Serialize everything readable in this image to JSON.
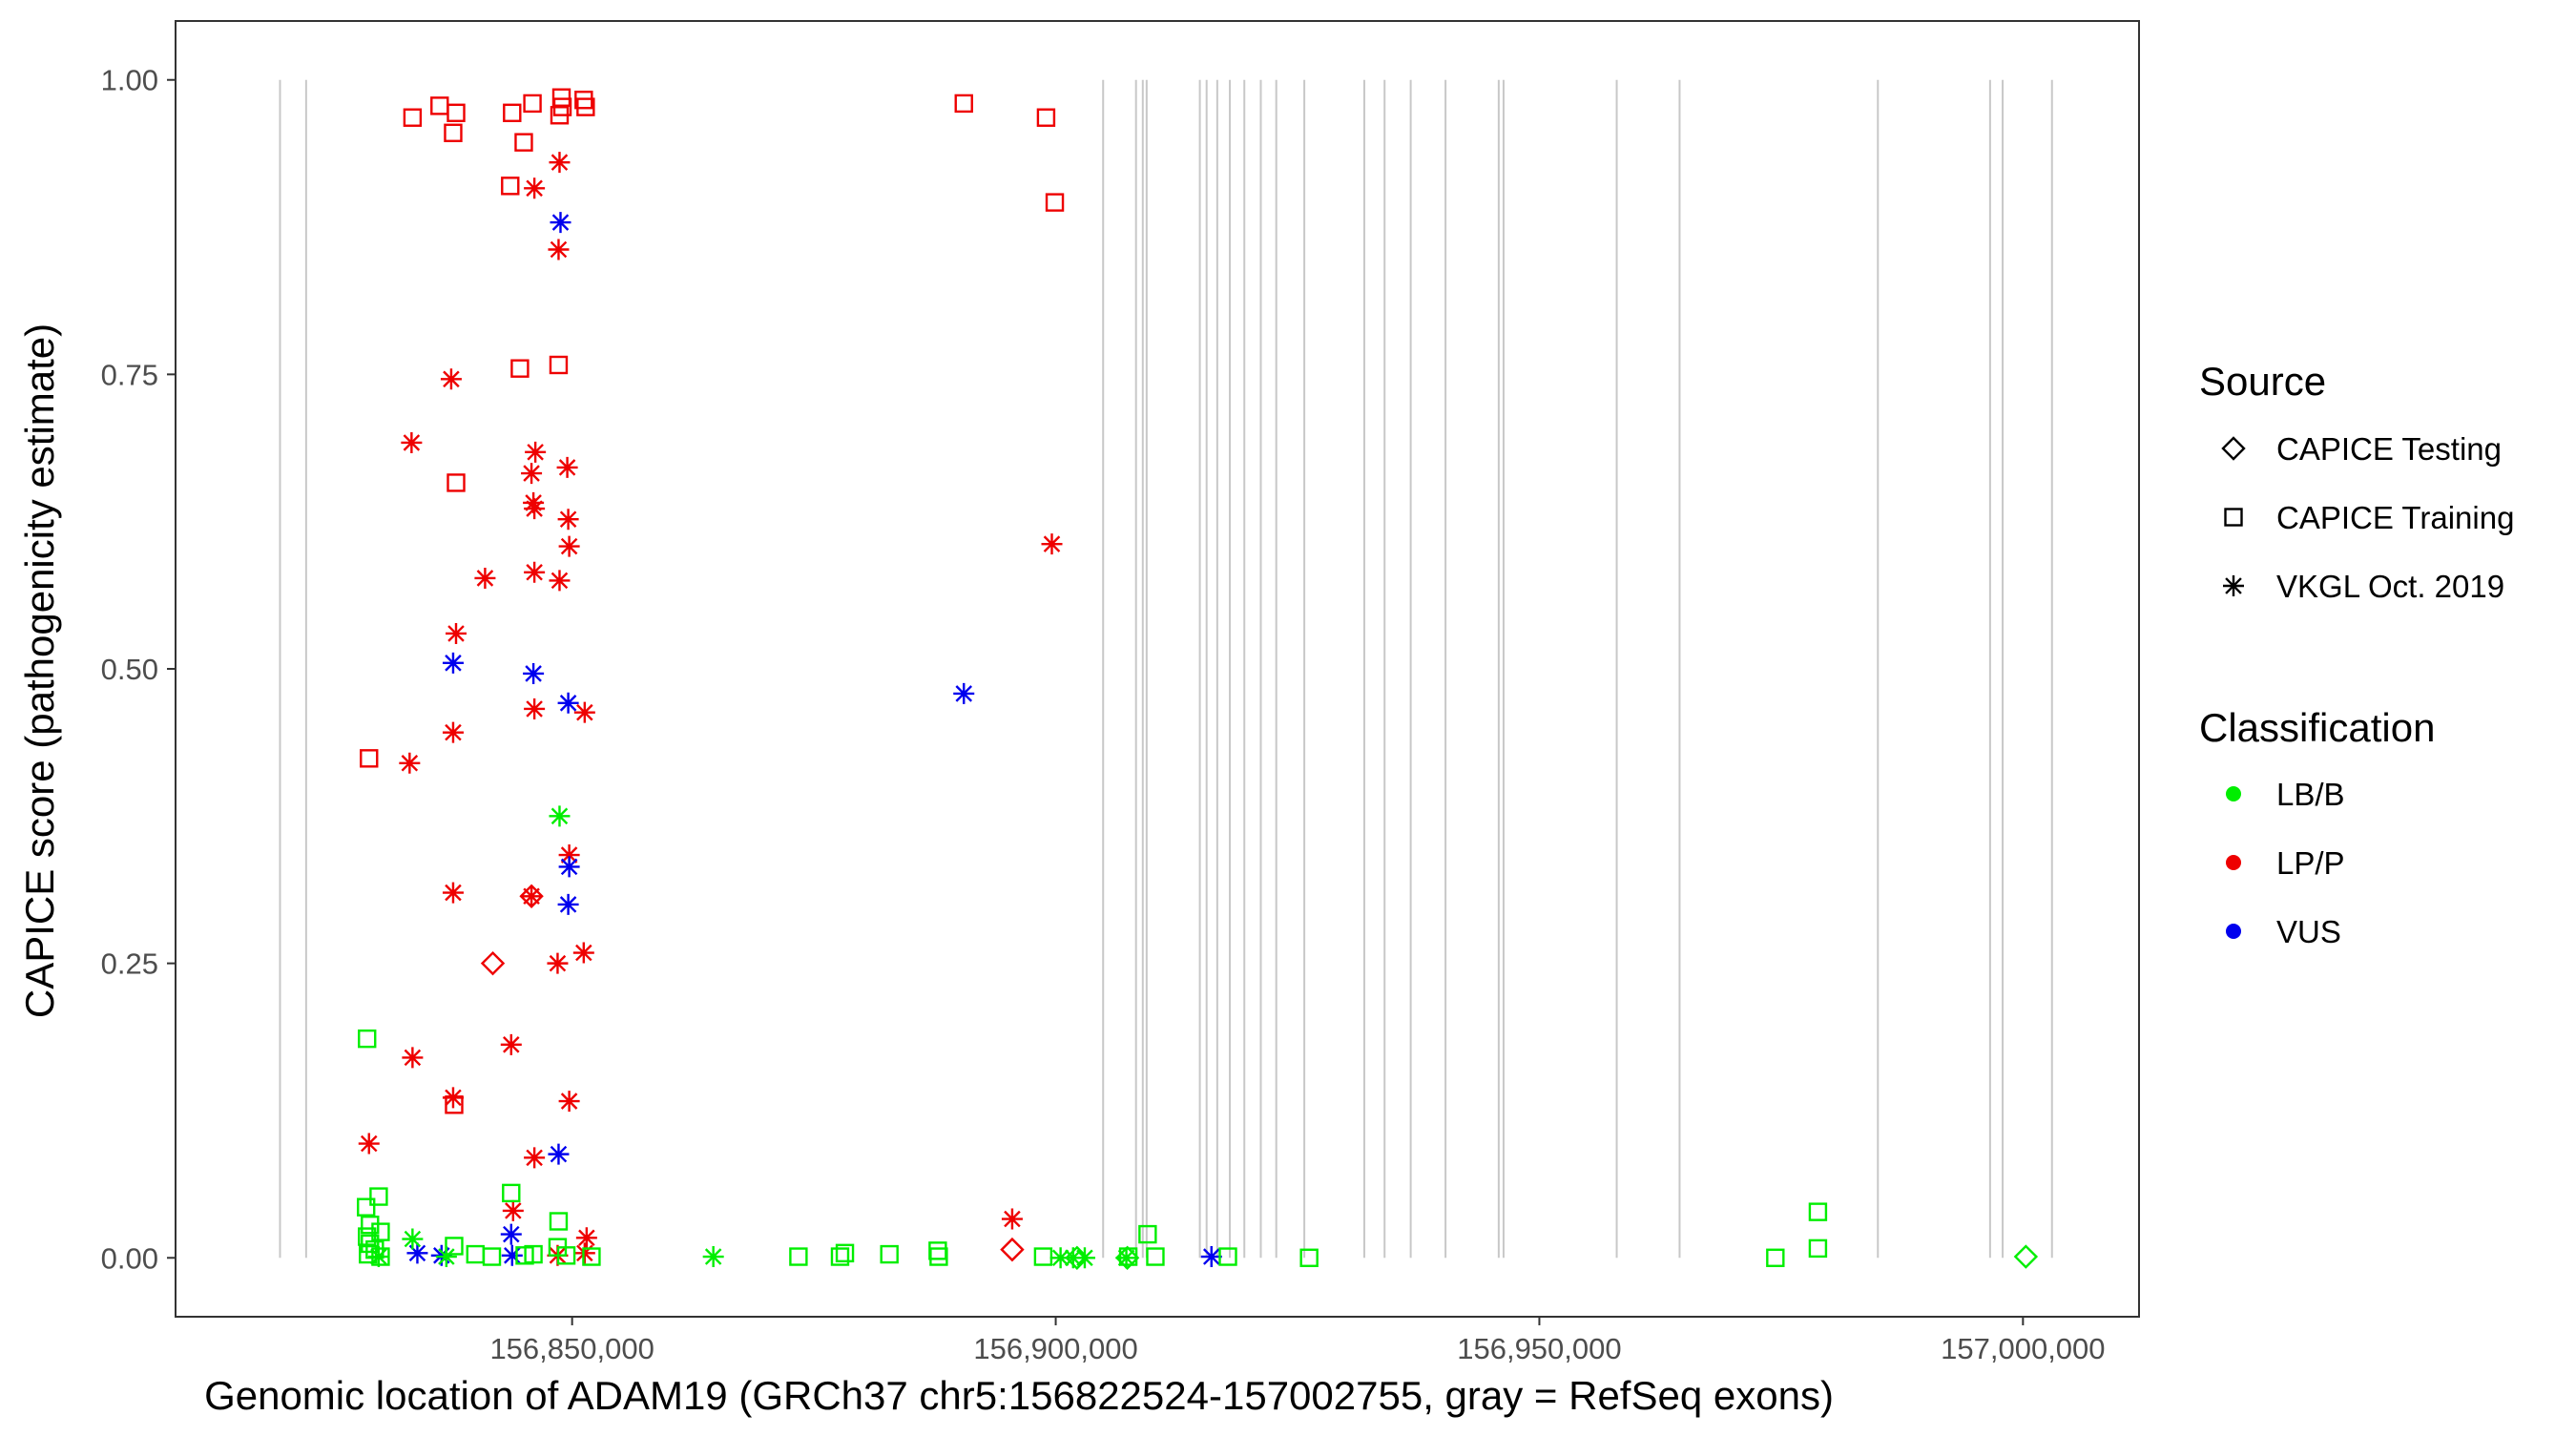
{
  "chart_data": {
    "type": "scatter",
    "xlabel": "Genomic location of ADAM19 (GRCh37 chr5:156822524-157002755, gray = RefSeq exons)",
    "ylabel": "CAPICE score (pathogenicity estimate)",
    "xlim": [
      156809000,
      157012000
    ],
    "ylim": [
      -0.05,
      1.05
    ],
    "x_ticks": [
      {
        "value": 156850000,
        "label": "156,850,000"
      },
      {
        "value": 156900000,
        "label": "156,900,000"
      },
      {
        "value": 156950000,
        "label": "156,950,000"
      },
      {
        "value": 157000000,
        "label": "157,000,000"
      }
    ],
    "y_ticks": [
      {
        "value": 0,
        "label": "0.00"
      },
      {
        "value": 0.25,
        "label": "0.25"
      },
      {
        "value": 0.5,
        "label": "0.50"
      },
      {
        "value": 0.75,
        "label": "0.75"
      },
      {
        "value": 1,
        "label": "1.00"
      }
    ],
    "grid": false,
    "exon_line_color": "#c8c8c8",
    "exon_positions": [
      156819800,
      156822500,
      156904900,
      156908300,
      156909000,
      156909400,
      156914900,
      156915600,
      156916700,
      156918000,
      156919500,
      156921200,
      156922800,
      156925700,
      156931900,
      156934000,
      156936700,
      156940300,
      156945800,
      156946300,
      156958000,
      156964500,
      156985000,
      156996600,
      156997900,
      157003000
    ],
    "colors": {
      "LB/B": "#00ee00",
      "LP/P": "#ee0000",
      "VUS": "#0000ee"
    },
    "legend_position": "right",
    "legends": [
      {
        "title": "Source",
        "entries": [
          {
            "label": "CAPICE Testing",
            "shape": "diamond"
          },
          {
            "label": "CAPICE Training",
            "shape": "square"
          },
          {
            "label": "VKGL Oct. 2019",
            "shape": "asterisk"
          }
        ]
      },
      {
        "title": "Classification",
        "entries": [
          {
            "label": "LB/B",
            "shape": "dot",
            "color": "LB/B"
          },
          {
            "label": "LP/P",
            "shape": "dot",
            "color": "LP/P"
          },
          {
            "label": "VUS",
            "shape": "dot",
            "color": "VUS"
          }
        ]
      }
    ],
    "series": [
      {
        "source": "CAPICE Training",
        "classification": "LP/P",
        "points": [
          [
            156833500,
            0.968
          ],
          [
            156836300,
            0.978
          ],
          [
            156837700,
            0.955
          ],
          [
            156838000,
            0.972
          ],
          [
            156843800,
            0.972
          ],
          [
            156845900,
            0.98
          ],
          [
            156848900,
            0.985
          ],
          [
            156848700,
            0.97
          ],
          [
            156849000,
            0.977
          ],
          [
            156851200,
            0.983
          ],
          [
            156851400,
            0.977
          ],
          [
            156843600,
            0.91
          ],
          [
            156845000,
            0.947
          ],
          [
            156844600,
            0.755
          ],
          [
            156848600,
            0.758
          ],
          [
            156838000,
            0.658
          ],
          [
            156829000,
            0.424
          ],
          [
            156837800,
            0.13
          ],
          [
            156890500,
            0.98
          ],
          [
            156899000,
            0.968
          ],
          [
            156899900,
            0.896
          ]
        ]
      },
      {
        "source": "VKGL Oct. 2019",
        "classification": "LP/P",
        "points": [
          [
            156848700,
            0.93
          ],
          [
            156846100,
            0.908
          ],
          [
            156848600,
            0.856
          ],
          [
            156837500,
            0.746
          ],
          [
            156833400,
            0.692
          ],
          [
            156846200,
            0.684
          ],
          [
            156845800,
            0.666
          ],
          [
            156849500,
            0.671
          ],
          [
            156846000,
            0.641
          ],
          [
            156846100,
            0.636
          ],
          [
            156849600,
            0.627
          ],
          [
            156849700,
            0.604
          ],
          [
            156841000,
            0.577
          ],
          [
            156846100,
            0.582
          ],
          [
            156848700,
            0.575
          ],
          [
            156838000,
            0.53
          ],
          [
            156837700,
            0.446
          ],
          [
            156833200,
            0.42
          ],
          [
            156846100,
            0.466
          ],
          [
            156851300,
            0.463
          ],
          [
            156849700,
            0.342
          ],
          [
            156837700,
            0.31
          ],
          [
            156845800,
            0.307
          ],
          [
            156851200,
            0.259
          ],
          [
            156848500,
            0.25
          ],
          [
            156833500,
            0.17
          ],
          [
            156843700,
            0.181
          ],
          [
            156837700,
            0.136
          ],
          [
            156849700,
            0.133
          ],
          [
            156829000,
            0.097
          ],
          [
            156846100,
            0.085
          ],
          [
            156843900,
            0.04
          ],
          [
            156851500,
            0.017
          ],
          [
            156851300,
            0.004
          ],
          [
            156848500,
            0.002
          ],
          [
            156899600,
            0.606
          ],
          [
            156895500,
            0.033
          ]
        ]
      },
      {
        "source": "CAPICE Testing",
        "classification": "LP/P",
        "points": [
          [
            156845800,
            0.307
          ],
          [
            156841800,
            0.25
          ],
          [
            156895500,
            0.007
          ]
        ]
      },
      {
        "source": "VKGL Oct. 2019",
        "classification": "VUS",
        "points": [
          [
            156848800,
            0.879
          ],
          [
            156837700,
            0.505
          ],
          [
            156846000,
            0.496
          ],
          [
            156849600,
            0.471
          ],
          [
            156849700,
            0.332
          ],
          [
            156849600,
            0.3
          ],
          [
            156848600,
            0.088
          ],
          [
            156843700,
            0.02
          ],
          [
            156834000,
            0.004
          ],
          [
            156836500,
            0.002
          ],
          [
            156843800,
            0.002
          ],
          [
            156890500,
            0.479
          ],
          [
            156916100,
            0.001
          ]
        ]
      },
      {
        "source": "VKGL Oct. 2019",
        "classification": "LB/B",
        "points": [
          [
            156848700,
            0.375
          ],
          [
            156833500,
            0.016
          ],
          [
            156864600,
            0.001
          ],
          [
            156900500,
            0.0
          ],
          [
            156901800,
            0.0
          ],
          [
            156903000,
            0.0
          ],
          [
            156907300,
            0.0
          ],
          [
            156837000,
            0.001
          ],
          [
            156830000,
            0.001
          ]
        ]
      },
      {
        "source": "CAPICE Training",
        "classification": "LB/B",
        "points": [
          [
            156828800,
            0.186
          ],
          [
            156830000,
            0.052
          ],
          [
            156828700,
            0.043
          ],
          [
            156829100,
            0.028
          ],
          [
            156830200,
            0.022
          ],
          [
            156828800,
            0.018
          ],
          [
            156829100,
            0.012
          ],
          [
            156829600,
            0.007
          ],
          [
            156828900,
            0.003
          ],
          [
            156830200,
            0.001
          ],
          [
            156843700,
            0.055
          ],
          [
            156848600,
            0.031
          ],
          [
            156837800,
            0.01
          ],
          [
            156848500,
            0.009
          ],
          [
            156840000,
            0.003
          ],
          [
            156841700,
            0.001
          ],
          [
            156845100,
            0.002
          ],
          [
            156846000,
            0.003
          ],
          [
            156849400,
            0.002
          ],
          [
            156852000,
            0.001
          ],
          [
            156873400,
            0.001
          ],
          [
            156877700,
            0.001
          ],
          [
            156878200,
            0.004
          ],
          [
            156882800,
            0.003
          ],
          [
            156887800,
            0.006
          ],
          [
            156887900,
            0.001
          ],
          [
            156898700,
            0.001
          ],
          [
            156907500,
            0.001
          ],
          [
            156909500,
            0.02
          ],
          [
            156910300,
            0.001
          ],
          [
            156917800,
            0.001
          ],
          [
            156926200,
            0.0
          ],
          [
            156974400,
            0.0
          ],
          [
            156978800,
            0.039
          ],
          [
            156978800,
            0.008
          ]
        ]
      },
      {
        "source": "CAPICE Testing",
        "classification": "LB/B",
        "points": [
          [
            157000300,
            0.001
          ],
          [
            156907400,
            0.0
          ],
          [
            156902200,
            0.0
          ]
        ]
      }
    ]
  }
}
